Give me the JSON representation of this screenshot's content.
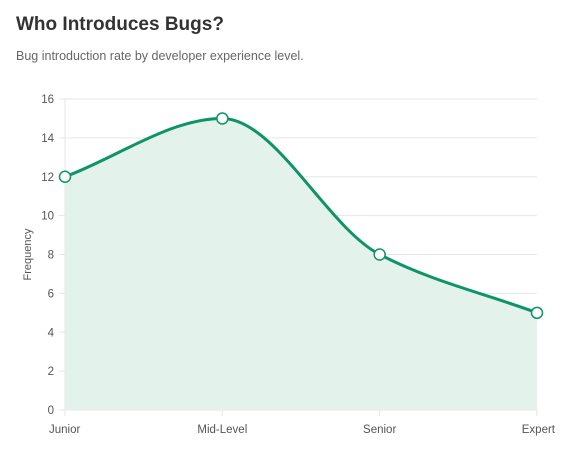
{
  "title": "Who Introduces Bugs?",
  "subtitle": "Bug introduction rate by developer experience level.",
  "colors": {
    "line": "#0e9466",
    "fill": "#e3f3ec",
    "grid": "#e6e6e6",
    "point_fill": "#ffffff"
  },
  "chart_data": {
    "type": "area",
    "title": "Who Introduces Bugs?",
    "subtitle": "Bug introduction rate by developer experience level.",
    "categories": [
      "Junior",
      "Mid-Level",
      "Senior",
      "Expert"
    ],
    "series": [
      {
        "values": [
          12,
          15,
          8,
          5
        ]
      }
    ],
    "xlabel": "",
    "ylabel": "Frequency",
    "ylim": [
      0,
      16
    ],
    "yticks": [
      0,
      2,
      4,
      6,
      8,
      10,
      12,
      14,
      16
    ],
    "grid": true,
    "smooth": true,
    "legend": "none"
  }
}
